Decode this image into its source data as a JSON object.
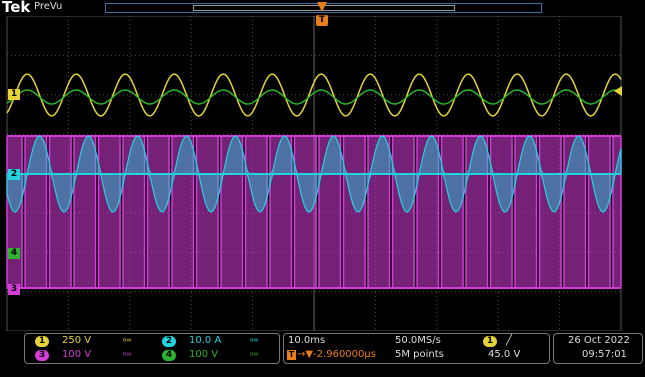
{
  "header": {
    "brand": "Tek",
    "mode": "PreVu"
  },
  "colors": {
    "ch1": "#e6d33a",
    "ch2": "#22d3dc",
    "ch3": "#d43cd8",
    "ch4": "#2bb42b",
    "grid": "#505050"
  },
  "channels": [
    {
      "num": "1",
      "scale": "250 V",
      "color": "#e6d33a",
      "bandwidth_icon": "bw-limit-icon"
    },
    {
      "num": "2",
      "scale": "10.0 A",
      "color": "#22d3dc",
      "bandwidth_icon": "bw-limit-icon"
    },
    {
      "num": "3",
      "scale": "100 V",
      "color": "#d43cd8",
      "bandwidth_icon": "bw-limit-icon"
    },
    {
      "num": "4",
      "scale": "100 V",
      "color": "#2bb42b",
      "bandwidth_icon": "bw-limit-icon"
    }
  ],
  "timebase": {
    "scale": "10.0ms",
    "sample_rate": "50.0MS/s",
    "delay": "→▼-2.960000µs",
    "record": "5M points"
  },
  "trigger": {
    "source": "1",
    "slope": "╱",
    "level": "45.0 V"
  },
  "datetime": {
    "date": "26 Oct  2022",
    "time": "09:57:01"
  },
  "markers": {
    "trigger_T": "T",
    "ch1": "1",
    "ch2": "2",
    "ch3": "3",
    "ch4": "4"
  }
}
